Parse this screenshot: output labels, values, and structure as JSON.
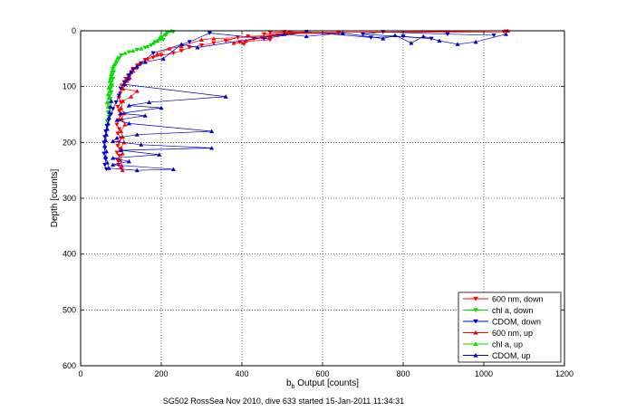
{
  "chart_data": {
    "type": "scatter",
    "title": "",
    "xlabel": {
      "main": "b",
      "sub": "b",
      "rest": " Output [counts]"
    },
    "ylabel": "Depth [counts]",
    "caption": "SG502 RossSea Nov 2010, dive 633 started 15-Jan-2011 11:34:31",
    "xlim": [
      0,
      1200
    ],
    "ylim": [
      0,
      600
    ],
    "y_reversed": true,
    "grid": true,
    "grid_style": "dotted",
    "legend_position": "bottom-right",
    "xticks": [
      "0",
      "200",
      "400",
      "600",
      "800",
      "1000",
      "1200"
    ],
    "yticks": [
      "0",
      "100",
      "200",
      "300",
      "400",
      "500",
      "600"
    ],
    "series": [
      {
        "name": "600 nm, down",
        "color": "#ff0000",
        "marker": "triangle-down",
        "points": [
          [
            1055,
            1
          ],
          [
            1050,
            2
          ],
          [
            470,
            3
          ],
          [
            505,
            2
          ],
          [
            640,
            4
          ],
          [
            455,
            6
          ],
          [
            490,
            8
          ],
          [
            415,
            10
          ],
          [
            430,
            14
          ],
          [
            520,
            4
          ],
          [
            560,
            2
          ],
          [
            450,
            12
          ],
          [
            470,
            16
          ],
          [
            395,
            20
          ],
          [
            405,
            24
          ],
          [
            360,
            18
          ],
          [
            390,
            12
          ],
          [
            330,
            22
          ],
          [
            300,
            26
          ],
          [
            270,
            30
          ],
          [
            250,
            36
          ],
          [
            230,
            40
          ],
          [
            200,
            44
          ],
          [
            180,
            48
          ],
          [
            160,
            52
          ],
          [
            150,
            58
          ],
          [
            140,
            62
          ],
          [
            130,
            68
          ],
          [
            125,
            74
          ],
          [
            118,
            80
          ],
          [
            112,
            86
          ],
          [
            108,
            92
          ],
          [
            102,
            98
          ],
          [
            100,
            104
          ],
          [
            98,
            112
          ],
          [
            95,
            120
          ],
          [
            100,
            128
          ],
          [
            92,
            136
          ],
          [
            96,
            144
          ],
          [
            98,
            152
          ],
          [
            94,
            160
          ],
          [
            90,
            168
          ],
          [
            96,
            176
          ],
          [
            92,
            184
          ],
          [
            100,
            192
          ],
          [
            95,
            200
          ],
          [
            92,
            206
          ],
          [
            98,
            212
          ],
          [
            90,
            218
          ],
          [
            96,
            224
          ],
          [
            92,
            232
          ],
          [
            94,
            240
          ],
          [
            100,
            246
          ]
        ]
      },
      {
        "name": "chl a, down",
        "color": "#00dd00",
        "marker": "triangle-down",
        "points": [
          [
            230,
            2
          ],
          [
            215,
            4
          ],
          [
            210,
            8
          ],
          [
            200,
            12
          ],
          [
            205,
            16
          ],
          [
            185,
            20
          ],
          [
            175,
            26
          ],
          [
            160,
            30
          ],
          [
            140,
            34
          ],
          [
            120,
            38
          ],
          [
            100,
            44
          ],
          [
            95,
            50
          ],
          [
            90,
            56
          ],
          [
            85,
            62
          ],
          [
            80,
            68
          ],
          [
            82,
            74
          ],
          [
            78,
            80
          ],
          [
            80,
            86
          ],
          [
            76,
            92
          ],
          [
            78,
            98
          ],
          [
            74,
            104
          ],
          [
            76,
            110
          ],
          [
            72,
            116
          ],
          [
            74,
            122
          ],
          [
            70,
            130
          ],
          [
            72,
            138
          ],
          [
            68,
            146
          ],
          [
            70,
            154
          ],
          [
            66,
            162
          ],
          [
            68,
            170
          ]
        ]
      },
      {
        "name": "CDOM, down",
        "color": "#0000cc",
        "marker": "triangle-down",
        "points": [
          [
            1025,
            8
          ],
          [
            910,
            6
          ],
          [
            750,
            2
          ],
          [
            700,
            6
          ],
          [
            870,
            14
          ],
          [
            800,
            10
          ],
          [
            720,
            12
          ],
          [
            560,
            2
          ],
          [
            455,
            14
          ],
          [
            320,
            4
          ],
          [
            270,
            20
          ],
          [
            180,
            40
          ],
          [
            150,
            58
          ],
          [
            130,
            70
          ],
          [
            120,
            80
          ],
          [
            110,
            92
          ],
          [
            100,
            104
          ],
          [
            95,
            116
          ],
          [
            88,
            128
          ],
          [
            80,
            140
          ],
          [
            75,
            150
          ],
          [
            70,
            160
          ],
          [
            65,
            170
          ],
          [
            62,
            180
          ],
          [
            60,
            190
          ],
          [
            58,
            200
          ],
          [
            60,
            210
          ],
          [
            58,
            220
          ],
          [
            62,
            230
          ],
          [
            60,
            240
          ],
          [
            64,
            248
          ]
        ]
      },
      {
        "name": "600 nm, up",
        "color": "#ff0000",
        "marker": "triangle-up",
        "points": [
          [
            1060,
            0
          ],
          [
            505,
            4
          ],
          [
            410,
            18
          ],
          [
            380,
            22
          ],
          [
            470,
            10
          ],
          [
            330,
            14
          ],
          [
            300,
            16
          ],
          [
            250,
            28
          ],
          [
            220,
            32
          ],
          [
            190,
            42
          ],
          [
            165,
            50
          ],
          [
            145,
            60
          ],
          [
            138,
            66
          ],
          [
            130,
            72
          ],
          [
            122,
            84
          ],
          [
            115,
            90
          ],
          [
            110,
            96
          ],
          [
            105,
            104
          ],
          [
            140,
            108
          ],
          [
            125,
            118
          ],
          [
            105,
            126
          ],
          [
            100,
            138
          ],
          [
            108,
            148
          ],
          [
            102,
            158
          ],
          [
            110,
            168
          ],
          [
            100,
            180
          ],
          [
            104,
            190
          ],
          [
            108,
            200
          ],
          [
            100,
            210
          ],
          [
            104,
            220
          ],
          [
            98,
            232
          ],
          [
            102,
            242
          ],
          [
            104,
            250
          ]
        ]
      },
      {
        "name": "chl a, up",
        "color": "#00dd00",
        "marker": "triangle-up",
        "points": [
          [
            225,
            0
          ],
          [
            210,
            6
          ],
          [
            200,
            10
          ],
          [
            195,
            14
          ],
          [
            190,
            18
          ],
          [
            180,
            22
          ],
          [
            165,
            28
          ],
          [
            150,
            32
          ],
          [
            130,
            36
          ],
          [
            110,
            40
          ],
          [
            92,
            48
          ],
          [
            88,
            54
          ],
          [
            84,
            60
          ],
          [
            80,
            66
          ],
          [
            78,
            72
          ],
          [
            76,
            78
          ],
          [
            74,
            84
          ],
          [
            72,
            90
          ],
          [
            74,
            96
          ],
          [
            70,
            102
          ],
          [
            72,
            108
          ],
          [
            68,
            114
          ],
          [
            70,
            120
          ],
          [
            66,
            128
          ],
          [
            68,
            136
          ]
        ]
      },
      {
        "name": "CDOM, up",
        "color": "#0000cc",
        "marker": "triangle-up",
        "points": [
          [
            1055,
            6
          ],
          [
            980,
            20
          ],
          [
            935,
            24
          ],
          [
            890,
            18
          ],
          [
            850,
            10
          ],
          [
            820,
            22
          ],
          [
            780,
            8
          ],
          [
            750,
            14
          ],
          [
            650,
            4
          ],
          [
            560,
            10
          ],
          [
            505,
            6
          ],
          [
            290,
            30
          ],
          [
            250,
            24
          ],
          [
            205,
            50
          ],
          [
            160,
            56
          ],
          [
            140,
            64
          ],
          [
            125,
            74
          ],
          [
            118,
            86
          ],
          [
            108,
            96
          ],
          [
            360,
            118
          ],
          [
            170,
            128
          ],
          [
            120,
            134
          ],
          [
            200,
            138
          ],
          [
            100,
            148
          ],
          [
            160,
            152
          ],
          [
            90,
            160
          ],
          [
            120,
            166
          ],
          [
            325,
            180
          ],
          [
            140,
            186
          ],
          [
            90,
            192
          ],
          [
            80,
            198
          ],
          [
            150,
            204
          ],
          [
            325,
            210
          ],
          [
            100,
            214
          ],
          [
            195,
            222
          ],
          [
            80,
            228
          ],
          [
            120,
            234
          ],
          [
            80,
            240
          ],
          [
            230,
            248
          ],
          [
            140,
            250
          ],
          [
            70,
            246
          ],
          [
            66,
            236
          ],
          [
            62,
            226
          ],
          [
            64,
            216
          ],
          [
            60,
            206
          ],
          [
            62,
            196
          ],
          [
            64,
            186
          ],
          [
            66,
            176
          ],
          [
            68,
            166
          ],
          [
            70,
            156
          ],
          [
            72,
            146
          ],
          [
            74,
            136
          ],
          [
            76,
            126
          ]
        ]
      }
    ]
  }
}
